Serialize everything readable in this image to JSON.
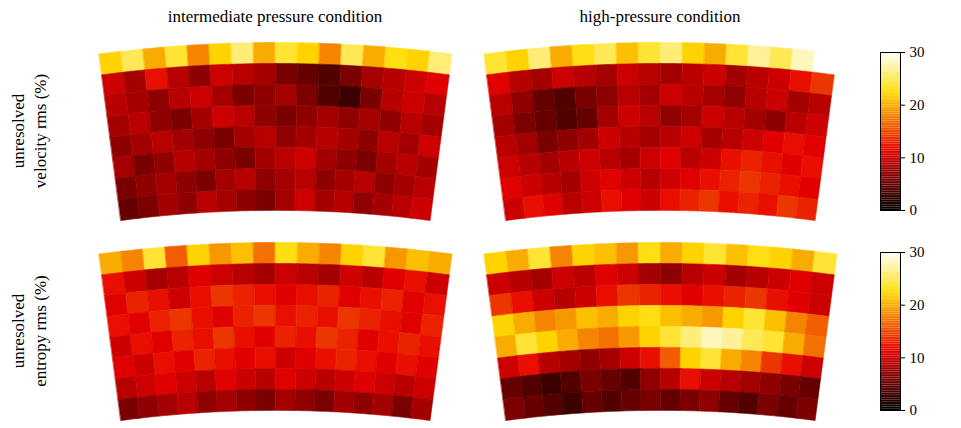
{
  "chart_data": {
    "type": "heatmap",
    "columns": [
      "intermediate pressure condition",
      "high-pressure condition"
    ],
    "rows": [
      "unresolved velocity rms (%)",
      "unresolved entropy rms (%)"
    ],
    "cells": [
      [
        [
          [
            22,
            25,
            20,
            24,
            18,
            22,
            26,
            20,
            24,
            22,
            18,
            25,
            20,
            23,
            22,
            26
          ],
          [
            10,
            8,
            12,
            9,
            7,
            10,
            9,
            8,
            6,
            5,
            4,
            6,
            8,
            9,
            10,
            11
          ],
          [
            9,
            8,
            7,
            9,
            10,
            8,
            6,
            7,
            8,
            6,
            4,
            3,
            6,
            9,
            10,
            9
          ],
          [
            8,
            9,
            7,
            6,
            8,
            10,
            9,
            7,
            6,
            7,
            8,
            7,
            8,
            7,
            9,
            8
          ],
          [
            7,
            8,
            9,
            8,
            7,
            6,
            8,
            9,
            7,
            8,
            9,
            8,
            7,
            9,
            8,
            10
          ],
          [
            8,
            6,
            7,
            9,
            8,
            7,
            6,
            8,
            9,
            10,
            8,
            7,
            6,
            8,
            9,
            8
          ],
          [
            6,
            7,
            8,
            7,
            6,
            8,
            9,
            7,
            8,
            9,
            7,
            8,
            9,
            7,
            8,
            9
          ],
          [
            5,
            6,
            8,
            7,
            9,
            8,
            7,
            6,
            8,
            10,
            8,
            9,
            7,
            8,
            9,
            10
          ]
        ],
        [
          [
            24,
            22,
            26,
            20,
            23,
            25,
            21,
            24,
            26,
            22,
            20,
            24,
            27,
            25,
            28,
            30
          ],
          [
            11,
            9,
            8,
            10,
            9,
            8,
            10,
            9,
            8,
            9,
            10,
            8,
            9,
            10,
            12,
            14
          ],
          [
            9,
            7,
            5,
            4,
            6,
            7,
            9,
            8,
            10,
            9,
            8,
            7,
            9,
            10,
            8,
            9
          ],
          [
            8,
            6,
            5,
            4,
            5,
            8,
            10,
            9,
            7,
            8,
            10,
            9,
            8,
            7,
            9,
            10
          ],
          [
            9,
            8,
            6,
            7,
            8,
            10,
            9,
            8,
            9,
            10,
            8,
            9,
            10,
            11,
            12,
            11
          ],
          [
            10,
            9,
            8,
            9,
            10,
            9,
            8,
            10,
            11,
            9,
            10,
            12,
            13,
            12,
            11,
            12
          ],
          [
            11,
            10,
            9,
            8,
            10,
            11,
            10,
            9,
            10,
            11,
            12,
            13,
            14,
            13,
            12,
            11
          ],
          [
            10,
            12,
            11,
            9,
            10,
            12,
            11,
            10,
            12,
            13,
            14,
            12,
            13,
            12,
            14,
            13
          ]
        ]
      ],
      [
        [
          [
            20,
            18,
            24,
            16,
            22,
            19,
            21,
            17,
            23,
            20,
            18,
            22,
            24,
            19,
            21,
            20
          ],
          [
            12,
            10,
            8,
            9,
            11,
            10,
            9,
            8,
            10,
            9,
            8,
            10,
            9,
            11,
            12,
            10
          ],
          [
            11,
            13,
            12,
            10,
            12,
            14,
            13,
            12,
            11,
            12,
            13,
            11,
            12,
            13,
            11,
            12
          ],
          [
            12,
            11,
            13,
            14,
            12,
            11,
            13,
            14,
            12,
            13,
            12,
            14,
            13,
            12,
            11,
            13
          ],
          [
            10,
            12,
            11,
            13,
            12,
            14,
            12,
            11,
            13,
            12,
            14,
            13,
            11,
            12,
            13,
            12
          ],
          [
            11,
            10,
            12,
            11,
            13,
            12,
            11,
            12,
            10,
            11,
            12,
            13,
            12,
            11,
            12,
            11
          ],
          [
            9,
            10,
            11,
            10,
            9,
            11,
            10,
            9,
            11,
            10,
            9,
            10,
            11,
            10,
            9,
            10
          ],
          [
            6,
            7,
            8,
            9,
            7,
            8,
            7,
            6,
            8,
            7,
            6,
            8,
            7,
            8,
            6,
            8
          ]
        ],
        [
          [
            22,
            20,
            24,
            18,
            22,
            21,
            19,
            23,
            20,
            22,
            24,
            21,
            23,
            22,
            20,
            24
          ],
          [
            10,
            9,
            8,
            10,
            9,
            11,
            10,
            8,
            7,
            9,
            10,
            8,
            9,
            10,
            11,
            10
          ],
          [
            14,
            12,
            10,
            9,
            10,
            12,
            14,
            13,
            12,
            11,
            12,
            13,
            14,
            12,
            11,
            10
          ],
          [
            22,
            20,
            18,
            19,
            21,
            20,
            22,
            23,
            21,
            20,
            19,
            22,
            24,
            21,
            18,
            16
          ],
          [
            20,
            24,
            22,
            20,
            18,
            17,
            19,
            22,
            24,
            26,
            28,
            27,
            25,
            24,
            20,
            17
          ],
          [
            10,
            12,
            9,
            8,
            7,
            8,
            10,
            12,
            16,
            22,
            24,
            20,
            18,
            14,
            12,
            10
          ],
          [
            5,
            4,
            3,
            4,
            6,
            5,
            4,
            7,
            9,
            12,
            10,
            9,
            8,
            7,
            6,
            5
          ],
          [
            6,
            5,
            4,
            3,
            5,
            4,
            5,
            6,
            5,
            6,
            7,
            5,
            4,
            6,
            5,
            6
          ]
        ]
      ]
    ],
    "colorbar": {
      "range": [
        0,
        30
      ],
      "ticks": [
        0,
        10,
        20,
        30
      ]
    }
  }
}
